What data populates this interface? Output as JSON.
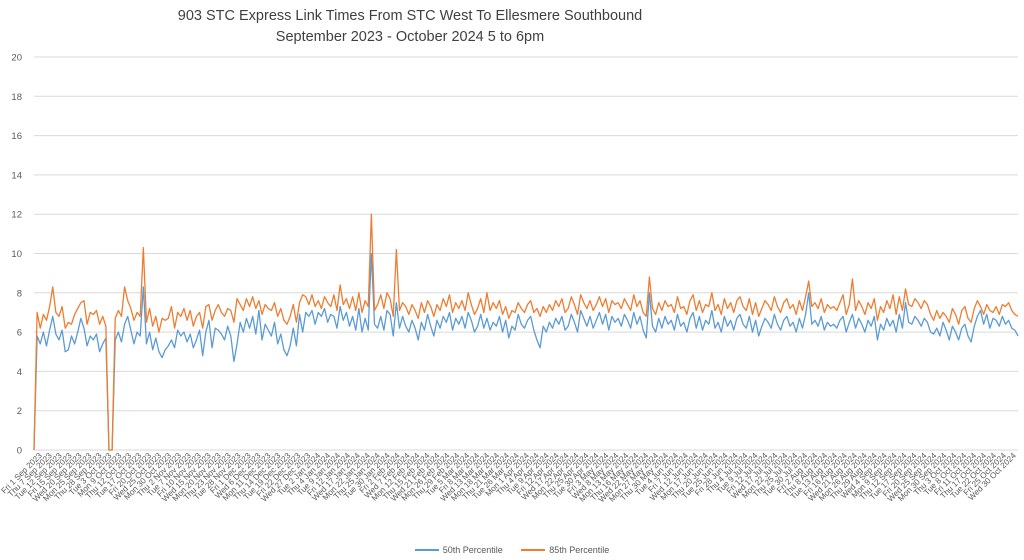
{
  "chart_data": {
    "type": "line",
    "title": "903 STC Express Link Times From STC West To Ellesmere Southbound",
    "subtitle": "September 2023 - October 2024 5 to 6pm",
    "xlabel": "",
    "ylabel": "",
    "ylim": [
      0,
      20
    ],
    "yticks": [
      0,
      2,
      4,
      6,
      8,
      10,
      12,
      14,
      16,
      18,
      20
    ],
    "grid": true,
    "legend_position": "bottom",
    "x_tick_labels": [
      "Fri 1 Sep 2023",
      "Thu 7 Sep 2023",
      "Tue 12 Sep 2023",
      "Fri 15 Sep 2023",
      "Wed 20 Sep 2023",
      "Mon 25 Sep 2023",
      "Thu 28 Sep 2023",
      "Tue 3 Oct 2023",
      "Mon 9 Oct 2023",
      "Thu 12 Oct 2023",
      "Tue 17 Oct 2023",
      "Fri 20 Oct 2023",
      "Wed 25 Oct 2023",
      "Mon 30 Oct 2023",
      "Thu 2 Nov 2023",
      "Tue 7 Nov 2023",
      "Fri 10 Nov 2023",
      "Wed 15 Nov 2023",
      "Mon 20 Nov 2023",
      "Thu 23 Nov 2023",
      "Tue 28 Nov 2023",
      "Fri 1 Dec 2023",
      "Wed 6 Dec 2023",
      "Mon 11 Dec 2023",
      "Thu 14 Dec 2023",
      "Tue 19 Dec 2023",
      "Fri 22 Dec 2023",
      "Wed 27 Dec 2023",
      "Tue 2 Jan 2024",
      "Thu 4 Jan 2024",
      "Tue 9 Jan 2024",
      "Fri 12 Jan 2024",
      "Wed 17 Jan 2024",
      "Mon 22 Jan 2024",
      "Thu 25 Jan 2024",
      "Tue 30 Jan 2024",
      "Fri 2 Feb 2024",
      "Wed 7 Feb 2024",
      "Mon 12 Feb 2024",
      "Thu 15 Feb 2024",
      "Wed 21 Feb 2024",
      "Mon 26 Feb 2024",
      "Thu 29 Feb 2024",
      "Tue 5 Mar 2024",
      "Fri 8 Mar 2024",
      "Wed 13 Mar 2024",
      "Mon 18 Mar 2024",
      "Thu 21 Mar 2024",
      "Tue 26 Mar 2024",
      "Mon 1 Apr 2024",
      "Thu 4 Apr 2024",
      "Tue 9 Apr 2024",
      "Fri 12 Apr 2024",
      "Wed 17 Apr 2024",
      "Mon 22 Apr 2024",
      "Thu 25 Apr 2024",
      "Tue 30 Apr 2024",
      "Fri 3 May 2024",
      "Wed 8 May 2024",
      "Mon 13 May 2024",
      "Thu 16 May 2024",
      "Wed 22 May 2024",
      "Mon 27 May 2024",
      "Thu 30 May 2024",
      "Tue 4 Jun 2024",
      "Fri 7 Jun 2024",
      "Wed 12 Jun 2024",
      "Mon 17 Jun 2024",
      "Thu 20 Jun 2024",
      "Tue 25 Jun 2024",
      "Fri 28 Jun 2024",
      "Thu 4 Jul 2024",
      "Tue 9 Jul 2024",
      "Fri 12 Jul 2024",
      "Wed 17 Jul 2024",
      "Mon 22 Jul 2024",
      "Thu 25 Jul 2024",
      "Tue 30 Jul 2024",
      "Fri 2 Aug 2024",
      "Thu 8 Aug 2024",
      "Tue 13 Aug 2024",
      "Fri 16 Aug 2024",
      "Wed 21 Aug 2024",
      "Mon 26 Aug 2024",
      "Thu 29 Aug 2024",
      "Wed 4 Sep 2024",
      "Mon 9 Sep 2024",
      "Thu 12 Sep 2024",
      "Tue 17 Sep 2024",
      "Fri 20 Sep 2024",
      "Wed 25 Sep 2024",
      "Mon 30 Sep 2024",
      "Thu 3 Oct 2024",
      "Tue 8 Oct 2024",
      "Fri 11 Oct 2024",
      "Thu 17 Oct 2024",
      "Tue 22 Oct 2024",
      "Fri 25 Oct 2024",
      "Wed 30 Oct 2024"
    ],
    "series": [
      {
        "name": "50th Percentile",
        "color": "#5b9bd5",
        "values": [
          0,
          5.8,
          5.4,
          6.0,
          5.3,
          6.1,
          6.8,
          5.9,
          5.6,
          6.1,
          5.0,
          5.1,
          5.8,
          5.4,
          6.0,
          6.7,
          6.2,
          5.3,
          5.8,
          5.6,
          5.9,
          5.0,
          5.4,
          5.7,
          0,
          0,
          5.6,
          6.0,
          5.5,
          6.4,
          6.8,
          6.1,
          5.4,
          6.0,
          5.8,
          8.3,
          5.4,
          6.0,
          5.1,
          5.7,
          5.0,
          4.7,
          5.1,
          5.3,
          5.6,
          5.2,
          6.1,
          5.8,
          6.0,
          5.5,
          5.9,
          5.2,
          5.6,
          6.1,
          4.8,
          6.0,
          6.6,
          5.2,
          6.2,
          6.1,
          5.9,
          5.6,
          6.3,
          5.8,
          4.5,
          5.4,
          6.5,
          6.0,
          6.7,
          6.2,
          6.8,
          5.9,
          7.1,
          5.6,
          6.4,
          6.1,
          5.8,
          6.5,
          5.4,
          5.9,
          5.1,
          4.8,
          5.3,
          6.2,
          5.3,
          6.9,
          6.0,
          7.0,
          6.8,
          7.1,
          6.4,
          7.0,
          6.8,
          7.2,
          6.5,
          6.9,
          6.8,
          6.2,
          7.3,
          6.6,
          7.0,
          6.3,
          6.8,
          6.1,
          7.2,
          6.0,
          6.7,
          6.1,
          10.0,
          6.4,
          6.2,
          6.8,
          6.1,
          7.1,
          6.9,
          5.8,
          7.5,
          6.2,
          6.8,
          6.3,
          6.0,
          6.6,
          6.2,
          5.6,
          6.5,
          6.1,
          6.9,
          6.3,
          5.8,
          6.6,
          6.2,
          6.8,
          6.5,
          7.0,
          6.1,
          6.7,
          6.4,
          6.8,
          6.2,
          7.0,
          6.6,
          6.0,
          6.3,
          6.9,
          6.2,
          6.7,
          6.1,
          6.5,
          6.3,
          6.8,
          6.0,
          6.6,
          5.7,
          6.3,
          6.1,
          6.9,
          6.4,
          6.2,
          6.6,
          6.8,
          6.1,
          5.6,
          5.2,
          6.3,
          6.0,
          6.5,
          6.2,
          6.7,
          6.4,
          6.8,
          6.1,
          6.3,
          6.9,
          6.5,
          6.0,
          7.1,
          6.7,
          6.3,
          6.8,
          6.2,
          6.6,
          7.0,
          6.4,
          6.9,
          6.1,
          6.8,
          6.5,
          6.7,
          6.3,
          6.9,
          6.6,
          6.2,
          7.0,
          6.4,
          6.8,
          6.1,
          5.7,
          8.0,
          6.3,
          6.0,
          6.7,
          6.2,
          6.8,
          6.4,
          6.6,
          6.1,
          6.9,
          6.3,
          6.5,
          6.0,
          6.7,
          7.0,
          6.2,
          6.8,
          6.1,
          6.6,
          6.4,
          7.1,
          6.2,
          6.5,
          6.0,
          6.8,
          6.3,
          6.6,
          6.1,
          6.7,
          6.9,
          6.4,
          6.2,
          6.8,
          6.0,
          6.6,
          5.8,
          6.3,
          6.7,
          6.5,
          6.2,
          6.9,
          6.4,
          6.1,
          6.6,
          6.8,
          6.3,
          6.5,
          6.0,
          6.7,
          6.2,
          6.9,
          8.0,
          6.4,
          6.6,
          6.3,
          6.8,
          6.1,
          6.5,
          6.3,
          6.4,
          6.2,
          6.6,
          6.8,
          6.0,
          6.5,
          6.9,
          6.2,
          6.7,
          6.4,
          6.0,
          6.6,
          6.3,
          6.8,
          5.6,
          6.4,
          6.1,
          6.7,
          6.3,
          6.6,
          6.0,
          6.9,
          6.2,
          7.5,
          6.5,
          6.4,
          6.8,
          6.6,
          6.3,
          6.7,
          6.5,
          6.0,
          5.9,
          6.2,
          5.8,
          6.5,
          6.1,
          5.6,
          6.3,
          6.0,
          5.6,
          6.2,
          6.4,
          5.8,
          5.5,
          6.3,
          6.8,
          7.1,
          6.4,
          6.9,
          6.2,
          6.7,
          6.6,
          6.3,
          6.8,
          6.4,
          6.6,
          6.2,
          6.1,
          5.8
        ]
      },
      {
        "name": "85th Percentile",
        "color": "#ed7d31",
        "values": [
          0,
          7.0,
          6.2,
          6.9,
          6.6,
          7.3,
          8.3,
          7.0,
          6.8,
          7.3,
          6.2,
          6.5,
          6.4,
          6.9,
          7.2,
          7.5,
          7.6,
          6.4,
          7.0,
          6.9,
          7.1,
          6.4,
          6.8,
          6.3,
          0,
          0,
          6.7,
          7.1,
          6.8,
          8.3,
          7.6,
          7.2,
          6.6,
          7.0,
          6.8,
          10.3,
          6.5,
          7.2,
          6.3,
          6.8,
          6.0,
          6.7,
          6.6,
          6.7,
          7.3,
          6.2,
          7.0,
          6.8,
          7.2,
          6.6,
          7.1,
          6.3,
          6.8,
          7.0,
          6.2,
          7.3,
          7.4,
          6.6,
          7.1,
          7.4,
          7.0,
          6.8,
          7.2,
          7.1,
          6.5,
          7.7,
          7.4,
          7.1,
          7.7,
          7.3,
          7.8,
          7.2,
          7.6,
          6.9,
          7.4,
          7.2,
          7.1,
          7.5,
          6.8,
          7.2,
          6.6,
          6.4,
          6.8,
          7.4,
          6.5,
          7.5,
          7.9,
          7.8,
          7.4,
          7.9,
          7.3,
          7.6,
          7.2,
          7.8,
          7.5,
          7.3,
          7.9,
          7.1,
          8.4,
          7.4,
          7.7,
          7.2,
          7.8,
          7.1,
          8.0,
          7.0,
          7.6,
          7.3,
          12.0,
          7.1,
          7.4,
          7.9,
          7.2,
          8.0,
          7.7,
          6.8,
          10.2,
          7.1,
          7.5,
          7.3,
          6.9,
          7.4,
          7.1,
          6.7,
          7.5,
          7.0,
          7.6,
          7.3,
          6.8,
          7.4,
          7.1,
          7.7,
          7.3,
          7.9,
          7.0,
          7.5,
          7.2,
          7.6,
          7.1,
          8.0,
          7.4,
          6.9,
          7.2,
          7.7,
          7.0,
          8.0,
          7.1,
          7.5,
          7.2,
          7.6,
          6.9,
          7.3,
          6.7,
          7.1,
          7.0,
          7.5,
          7.2,
          7.0,
          7.4,
          7.6,
          7.0,
          7.2,
          6.8,
          7.3,
          7.0,
          7.4,
          7.1,
          7.6,
          7.3,
          7.7,
          7.0,
          7.2,
          7.8,
          7.4,
          6.9,
          7.9,
          7.5,
          7.2,
          7.6,
          7.1,
          7.4,
          7.8,
          7.3,
          7.7,
          7.0,
          7.6,
          7.4,
          7.5,
          7.2,
          7.7,
          7.4,
          7.1,
          7.9,
          7.3,
          7.6,
          7.0,
          6.8,
          8.8,
          7.2,
          6.9,
          7.5,
          7.1,
          7.6,
          7.3,
          7.4,
          7.0,
          7.8,
          7.2,
          7.3,
          6.9,
          7.6,
          7.9,
          7.1,
          7.6,
          7.0,
          7.4,
          7.3,
          8.0,
          7.1,
          7.4,
          6.9,
          7.7,
          7.2,
          7.5,
          7.0,
          7.6,
          7.8,
          7.3,
          7.1,
          7.7,
          6.9,
          7.5,
          6.8,
          7.2,
          7.6,
          7.4,
          7.1,
          7.8,
          7.3,
          7.0,
          7.5,
          7.7,
          7.2,
          7.4,
          6.9,
          7.6,
          7.1,
          7.8,
          8.6,
          7.3,
          7.5,
          7.2,
          7.7,
          7.0,
          7.4,
          7.2,
          7.3,
          7.1,
          7.5,
          7.9,
          6.9,
          7.4,
          8.7,
          7.1,
          7.6,
          7.3,
          6.9,
          7.5,
          7.2,
          7.7,
          6.6,
          7.3,
          7.0,
          7.6,
          7.2,
          7.9,
          6.9,
          7.8,
          7.1,
          8.2,
          7.4,
          7.3,
          7.7,
          7.5,
          7.2,
          7.6,
          7.4,
          6.9,
          6.6,
          7.1,
          6.7,
          7.0,
          6.8,
          6.5,
          7.2,
          6.9,
          6.4,
          7.1,
          7.3,
          6.7,
          6.5,
          7.2,
          7.6,
          7.3,
          6.9,
          7.4,
          7.1,
          7.0,
          7.3,
          6.9,
          7.4,
          7.3,
          7.5,
          7.1,
          6.9,
          6.8
        ]
      }
    ]
  }
}
